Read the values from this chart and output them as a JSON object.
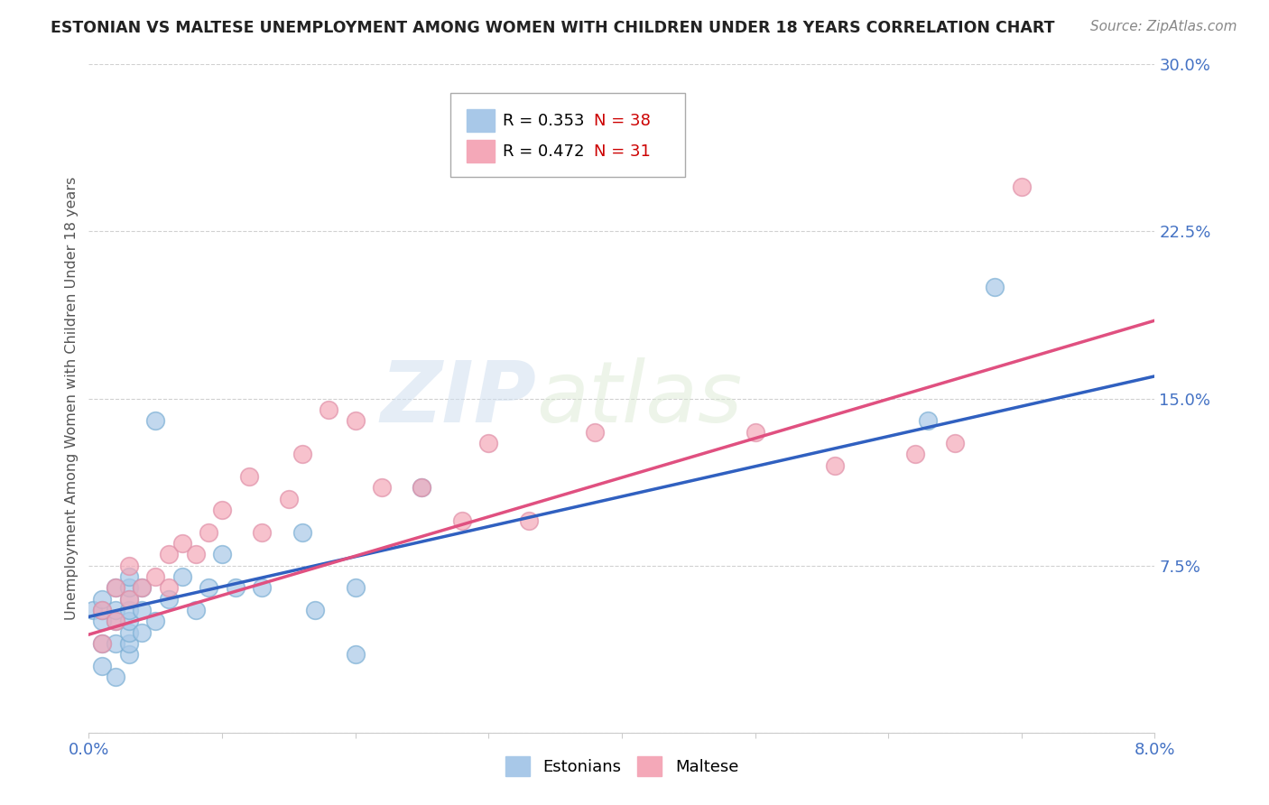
{
  "title": "ESTONIAN VS MALTESE UNEMPLOYMENT AMONG WOMEN WITH CHILDREN UNDER 18 YEARS CORRELATION CHART",
  "source": "Source: ZipAtlas.com",
  "ylabel": "Unemployment Among Women with Children Under 18 years",
  "xlim": [
    0.0,
    0.08
  ],
  "ylim": [
    0.0,
    0.3
  ],
  "xticks": [
    0.0,
    0.01,
    0.02,
    0.03,
    0.04,
    0.05,
    0.06,
    0.07,
    0.08
  ],
  "xticklabels": [
    "0.0%",
    "",
    "",
    "",
    "",
    "",
    "",
    "",
    "8.0%"
  ],
  "yticks": [
    0.0,
    0.075,
    0.15,
    0.225,
    0.3
  ],
  "yticklabels": [
    "",
    "7.5%",
    "15.0%",
    "22.5%",
    "30.0%"
  ],
  "legend_label1": "Estonians",
  "legend_label2": "Maltese",
  "blue_color": "#a8c8e8",
  "pink_color": "#f4a8b8",
  "blue_line_color": "#3060c0",
  "pink_line_color": "#e05080",
  "watermark_zip": "ZIP",
  "watermark_atlas": "atlas",
  "background_color": "#ffffff",
  "grid_color": "#cccccc",
  "estonian_x": [
    0.0003,
    0.001,
    0.001,
    0.001,
    0.001,
    0.001,
    0.002,
    0.002,
    0.002,
    0.002,
    0.002,
    0.003,
    0.003,
    0.003,
    0.003,
    0.003,
    0.003,
    0.003,
    0.003,
    0.004,
    0.004,
    0.004,
    0.005,
    0.005,
    0.006,
    0.007,
    0.008,
    0.009,
    0.01,
    0.011,
    0.013,
    0.016,
    0.017,
    0.02,
    0.02,
    0.025,
    0.063,
    0.068
  ],
  "estonian_y": [
    0.055,
    0.03,
    0.04,
    0.05,
    0.055,
    0.06,
    0.025,
    0.04,
    0.05,
    0.055,
    0.065,
    0.035,
    0.04,
    0.045,
    0.05,
    0.055,
    0.06,
    0.065,
    0.07,
    0.045,
    0.055,
    0.065,
    0.05,
    0.14,
    0.06,
    0.07,
    0.055,
    0.065,
    0.08,
    0.065,
    0.065,
    0.09,
    0.055,
    0.065,
    0.035,
    0.11,
    0.14,
    0.2
  ],
  "maltese_x": [
    0.001,
    0.001,
    0.002,
    0.002,
    0.003,
    0.003,
    0.004,
    0.005,
    0.006,
    0.006,
    0.007,
    0.008,
    0.009,
    0.01,
    0.012,
    0.013,
    0.015,
    0.016,
    0.018,
    0.02,
    0.022,
    0.025,
    0.028,
    0.03,
    0.033,
    0.038,
    0.05,
    0.056,
    0.062,
    0.065,
    0.07
  ],
  "maltese_y": [
    0.04,
    0.055,
    0.05,
    0.065,
    0.06,
    0.075,
    0.065,
    0.07,
    0.065,
    0.08,
    0.085,
    0.08,
    0.09,
    0.1,
    0.115,
    0.09,
    0.105,
    0.125,
    0.145,
    0.14,
    0.11,
    0.11,
    0.095,
    0.13,
    0.095,
    0.135,
    0.135,
    0.12,
    0.125,
    0.13,
    0.245
  ],
  "trend_blue_x0": 0.0,
  "trend_blue_y0": 0.052,
  "trend_blue_x1": 0.08,
  "trend_blue_y1": 0.16,
  "trend_pink_x0": 0.0,
  "trend_pink_y0": 0.044,
  "trend_pink_x1": 0.08,
  "trend_pink_y1": 0.185
}
